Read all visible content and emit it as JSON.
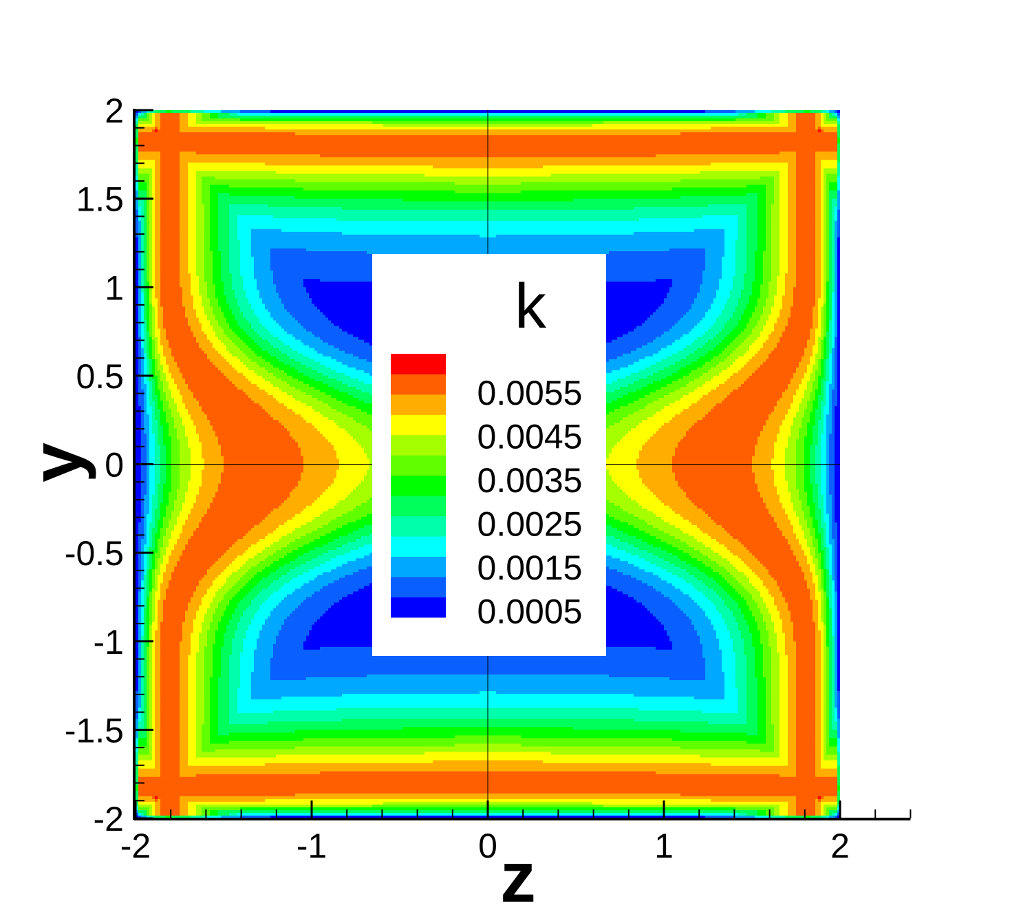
{
  "chart_data": {
    "type": "heatmap",
    "variable": "k",
    "xlabel": "z",
    "ylabel": "y",
    "xlim": [
      -2,
      2
    ],
    "ylim": [
      -2,
      2
    ],
    "axis_x_extent_max": 2.4,
    "x_ticks": [
      {
        "value": -2,
        "label": "-2"
      },
      {
        "value": -1,
        "label": "-1"
      },
      {
        "value": 0,
        "label": "0"
      },
      {
        "value": 1,
        "label": "1"
      },
      {
        "value": 2,
        "label": "2"
      }
    ],
    "y_ticks": [
      {
        "value": -2,
        "label": "-2"
      },
      {
        "value": -1.5,
        "label": "-1.5"
      },
      {
        "value": -1,
        "label": "-1"
      },
      {
        "value": -0.5,
        "label": "-0.5"
      },
      {
        "value": 0,
        "label": "0"
      },
      {
        "value": 0.5,
        "label": "0.5"
      },
      {
        "value": 1,
        "label": "1"
      },
      {
        "value": 1.5,
        "label": "1.5"
      },
      {
        "value": 2,
        "label": "2"
      }
    ],
    "grid": "center lines at z=0 and y=0",
    "legend": {
      "title": "k",
      "placement": "center",
      "labels": [
        "0.0055",
        "0.0045",
        "0.0035",
        "0.0025",
        "0.0015",
        "0.0005"
      ],
      "levels_min": 0,
      "levels_step": 0.0005,
      "level_colors": [
        "#0000ff",
        "#0a60ff",
        "#00a8ff",
        "#00ffff",
        "#00ffaa",
        "#00ff5a",
        "#00ff00",
        "#60ff00",
        "#a6ff00",
        "#ffff00",
        "#ffae00",
        "#ff5f00",
        "#ff0000"
      ]
    },
    "field_description": "k peaks (≈0.006) in the four corners, is elevated along all walls (≈0.004–0.0055), with side-wall bulges toward the interior near y=0 reaching z≈±1.25; core region is ≈0 (below 0.0005)."
  }
}
